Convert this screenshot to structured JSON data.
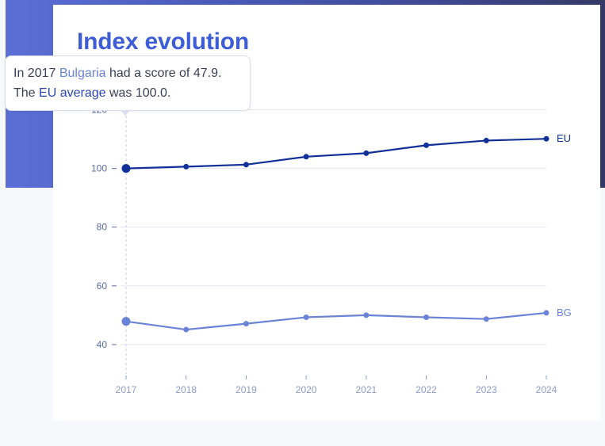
{
  "chart_data": {
    "type": "line",
    "title": "Index evolution",
    "x": [
      "2017",
      "2018",
      "2019",
      "2020",
      "2021",
      "2022",
      "2023",
      "2024"
    ],
    "ylim": [
      30,
      125
    ],
    "yticks": [
      40,
      60,
      80,
      100,
      120
    ],
    "grid": true,
    "series": [
      {
        "name": "EU",
        "color": "#12309a",
        "values": [
          100.0,
          100.6,
          101.3,
          104.0,
          105.2,
          107.9,
          109.5,
          110.1
        ]
      },
      {
        "name": "BG",
        "color": "#6b83d6",
        "values": [
          47.9,
          45.1,
          47.1,
          49.3,
          50.0,
          49.3,
          48.7,
          50.8
        ]
      }
    ],
    "highlight": {
      "x": "2017"
    }
  },
  "tooltip": {
    "line1_prefix": "In 2017 ",
    "line1_country": "Bulgaria",
    "line1_suffix": " had a score of 47.9.",
    "line2_prefix": "The ",
    "line2_avg": "EU average",
    "line2_suffix": " was 100.0."
  }
}
